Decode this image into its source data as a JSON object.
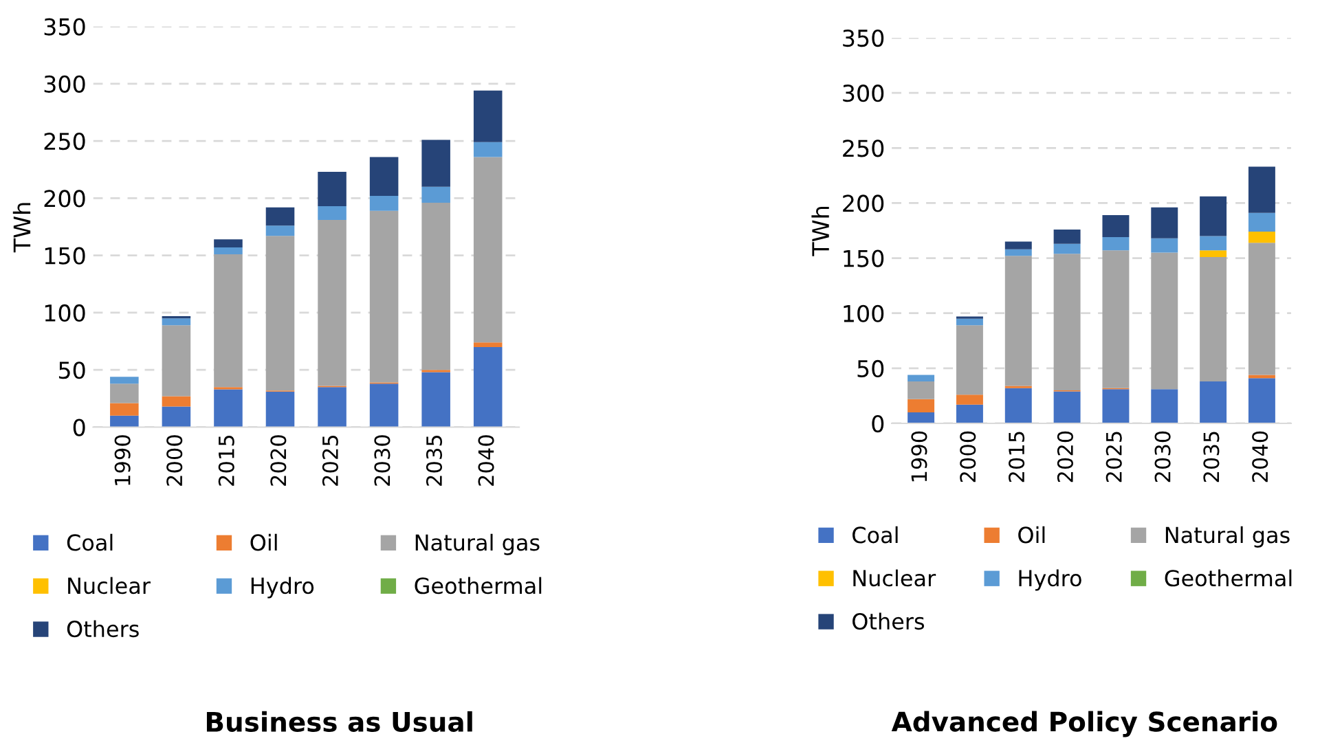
{
  "chart_data": [
    {
      "type": "bar",
      "title": "Business as Usual",
      "ylabel": "TWh",
      "stacked": true,
      "categories": [
        "1990",
        "2000",
        "2015",
        "2020",
        "2025",
        "2030",
        "2035",
        "2040"
      ],
      "ylim": [
        0,
        350
      ],
      "yticks": [
        0,
        50,
        100,
        150,
        200,
        250,
        300,
        350
      ],
      "grid": "y",
      "legend": "bottom",
      "series": [
        {
          "name": "Coal",
          "color": "#4472c4",
          "values": [
            10,
            18,
            33,
            31,
            35,
            38,
            48,
            70
          ]
        },
        {
          "name": "Oil",
          "color": "#ed7d31",
          "values": [
            11,
            9,
            2,
            1,
            1,
            1,
            2,
            4
          ]
        },
        {
          "name": "Natural gas",
          "color": "#a5a5a5",
          "values": [
            17,
            62,
            116,
            135,
            145,
            150,
            146,
            162
          ]
        },
        {
          "name": "Nuclear",
          "color": "#ffc000",
          "values": [
            null,
            null,
            null,
            null,
            null,
            null,
            null,
            null
          ]
        },
        {
          "name": "Hydro",
          "color": "#5b9bd5",
          "values": [
            6,
            6,
            6,
            9,
            12,
            13,
            14,
            13
          ]
        },
        {
          "name": "Geothermal",
          "color": "#70ad47",
          "values": [
            null,
            null,
            null,
            null,
            null,
            null,
            null,
            null
          ]
        },
        {
          "name": "Others",
          "color": "#264478",
          "values": [
            null,
            2,
            7,
            16,
            30,
            34,
            41,
            45
          ]
        }
      ]
    },
    {
      "type": "bar",
      "title": "Advanced Policy Scenario",
      "ylabel": "TWh",
      "stacked": true,
      "categories": [
        "1990",
        "2000",
        "2015",
        "2020",
        "2025",
        "2030",
        "2035",
        "2040"
      ],
      "ylim": [
        0,
        350
      ],
      "yticks": [
        0,
        50,
        100,
        150,
        200,
        250,
        300,
        350
      ],
      "grid": "y",
      "legend": "bottom",
      "series": [
        {
          "name": "Coal",
          "color": "#4472c4",
          "values": [
            10,
            17,
            32,
            29,
            31,
            31,
            38,
            41
          ]
        },
        {
          "name": "Oil",
          "color": "#ed7d31",
          "values": [
            12,
            9,
            2,
            1,
            1,
            null,
            null,
            3
          ]
        },
        {
          "name": "Natural gas",
          "color": "#a5a5a5",
          "values": [
            16,
            63,
            118,
            124,
            125,
            124,
            113,
            120
          ]
        },
        {
          "name": "Nuclear",
          "color": "#ffc000",
          "values": [
            null,
            null,
            null,
            null,
            null,
            null,
            6,
            10
          ]
        },
        {
          "name": "Hydro",
          "color": "#5b9bd5",
          "values": [
            6,
            6,
            6,
            9,
            12,
            13,
            13,
            17
          ]
        },
        {
          "name": "Geothermal",
          "color": "#70ad47",
          "values": [
            null,
            null,
            null,
            null,
            null,
            null,
            null,
            null
          ]
        },
        {
          "name": "Others",
          "color": "#264478",
          "values": [
            null,
            2,
            7,
            13,
            20,
            28,
            36,
            42
          ]
        }
      ]
    }
  ]
}
